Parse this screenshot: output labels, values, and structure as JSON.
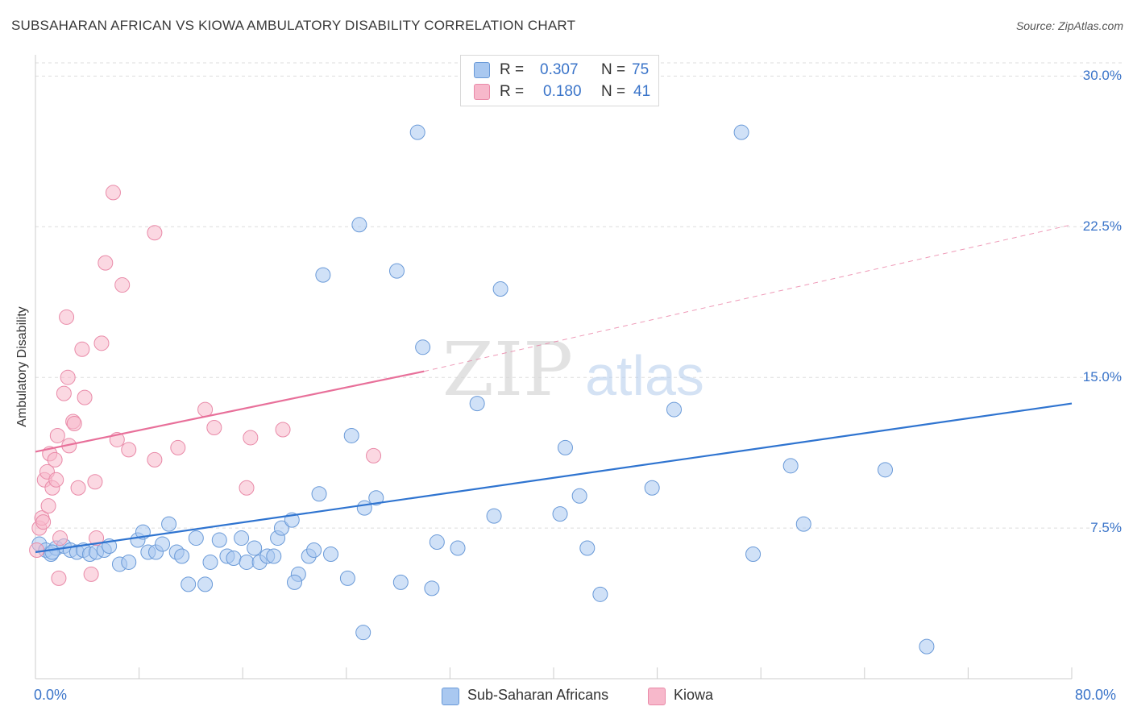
{
  "title": "SUBSAHARAN AFRICAN VS KIOWA AMBULATORY DISABILITY CORRELATION CHART",
  "source": "Source: ZipAtlas.com",
  "watermark": {
    "zip": "ZIP",
    "atlas": "atlas"
  },
  "legend": {
    "r_label": "R =",
    "n_label": "N =",
    "rows": [
      {
        "r": "0.307",
        "n": "75",
        "color": "#a9c8f0"
      },
      {
        "r": "0.180",
        "n": "41",
        "color": "#f7b8cb"
      }
    ]
  },
  "bottom_legend": {
    "items": [
      {
        "label": "Sub-Saharan Africans",
        "color": "#a9c8f0"
      },
      {
        "label": "Kiowa",
        "color": "#f7b8cb"
      }
    ]
  },
  "colors": {
    "blue_fill": "#a9c8f0",
    "blue_stroke": "#6a9ad8",
    "blue_line": "#2f74d0",
    "pink_fill": "#f7b8cb",
    "pink_stroke": "#e98aa8",
    "pink_line": "#e8709a",
    "tick_text": "#3a74c9",
    "grid": "#dddddd"
  },
  "chart_data": {
    "type": "scatter",
    "title": "SUBSAHARAN AFRICAN VS KIOWA AMBULATORY DISABILITY CORRELATION CHART",
    "xlabel": "",
    "ylabel": "Ambulatory Disability",
    "xlim": [
      0,
      80
    ],
    "ylim": [
      0,
      31.5
    ],
    "x_tick_labels": [
      "0.0%",
      "80.0%"
    ],
    "y_ticks": [
      7.5,
      15.0,
      22.5,
      30.0
    ],
    "y_tick_labels": [
      "7.5%",
      "15.0%",
      "22.5%",
      "30.0%"
    ],
    "grid": true,
    "legend_position": "top-center",
    "series": [
      {
        "name": "Sub-Saharan Africans",
        "r": 0.307,
        "n": 75,
        "trend": {
          "x": [
            0,
            80
          ],
          "y": [
            6.3,
            13.7
          ],
          "style": "solid"
        },
        "points": [
          [
            0.3,
            6.7
          ],
          [
            0.8,
            6.4
          ],
          [
            1.2,
            6.2
          ],
          [
            1.6,
            6.5
          ],
          [
            2.2,
            6.6
          ],
          [
            2.7,
            6.4
          ],
          [
            3.2,
            6.3
          ],
          [
            3.7,
            6.4
          ],
          [
            4.2,
            6.2
          ],
          [
            4.7,
            6.3
          ],
          [
            5.3,
            6.4
          ],
          [
            5.7,
            6.6
          ],
          [
            6.5,
            5.7
          ],
          [
            7.2,
            5.8
          ],
          [
            7.9,
            6.9
          ],
          [
            8.3,
            7.3
          ],
          [
            8.7,
            6.3
          ],
          [
            9.3,
            6.3
          ],
          [
            9.8,
            6.7
          ],
          [
            10.3,
            7.7
          ],
          [
            10.9,
            6.3
          ],
          [
            11.3,
            6.1
          ],
          [
            11.8,
            4.7
          ],
          [
            12.4,
            7.0
          ],
          [
            13.1,
            4.7
          ],
          [
            13.5,
            5.8
          ],
          [
            14.2,
            6.9
          ],
          [
            14.8,
            6.1
          ],
          [
            15.3,
            6.0
          ],
          [
            15.9,
            7.0
          ],
          [
            16.3,
            5.8
          ],
          [
            16.9,
            6.5
          ],
          [
            17.3,
            5.8
          ],
          [
            17.9,
            6.1
          ],
          [
            18.4,
            6.1
          ],
          [
            18.7,
            7.0
          ],
          [
            19.0,
            7.5
          ],
          [
            19.8,
            7.9
          ],
          [
            20.3,
            5.2
          ],
          [
            20.0,
            4.8
          ],
          [
            21.1,
            6.1
          ],
          [
            21.5,
            6.4
          ],
          [
            21.9,
            9.2
          ],
          [
            22.8,
            6.2
          ],
          [
            22.2,
            20.1
          ],
          [
            24.1,
            5.0
          ],
          [
            24.4,
            12.1
          ],
          [
            25.0,
            22.6
          ],
          [
            25.4,
            8.5
          ],
          [
            25.3,
            2.3
          ],
          [
            26.3,
            9.0
          ],
          [
            27.9,
            20.3
          ],
          [
            28.2,
            4.8
          ],
          [
            29.5,
            27.2
          ],
          [
            29.9,
            16.5
          ],
          [
            30.6,
            4.5
          ],
          [
            31.0,
            6.8
          ],
          [
            32.6,
            6.5
          ],
          [
            34.1,
            13.7
          ],
          [
            35.4,
            8.1
          ],
          [
            35.9,
            19.4
          ],
          [
            40.5,
            8.2
          ],
          [
            40.9,
            11.5
          ],
          [
            42.0,
            9.1
          ],
          [
            42.6,
            6.5
          ],
          [
            43.6,
            4.2
          ],
          [
            47.6,
            9.5
          ],
          [
            49.3,
            13.4
          ],
          [
            54.5,
            27.2
          ],
          [
            55.4,
            6.2
          ],
          [
            58.3,
            10.6
          ],
          [
            59.3,
            7.7
          ],
          [
            65.6,
            10.4
          ],
          [
            68.8,
            1.6
          ],
          [
            1.3,
            6.3
          ]
        ]
      },
      {
        "name": "Kiowa",
        "r": 0.18,
        "n": 41,
        "trend": {
          "x": [
            0,
            30
          ],
          "y": [
            11.3,
            15.3
          ],
          "style": "solid",
          "extended_to": [
            80,
            22.6
          ],
          "extended_style": "dashed"
        },
        "points": [
          [
            0.1,
            6.4
          ],
          [
            0.3,
            7.5
          ],
          [
            0.5,
            8.0
          ],
          [
            0.6,
            7.8
          ],
          [
            0.7,
            9.9
          ],
          [
            0.9,
            10.3
          ],
          [
            1.0,
            8.6
          ],
          [
            1.1,
            11.2
          ],
          [
            1.3,
            9.5
          ],
          [
            1.5,
            10.9
          ],
          [
            1.6,
            9.9
          ],
          [
            1.7,
            12.1
          ],
          [
            1.8,
            5.0
          ],
          [
            1.9,
            7.0
          ],
          [
            2.2,
            14.2
          ],
          [
            2.4,
            18.0
          ],
          [
            2.5,
            15.0
          ],
          [
            2.6,
            11.6
          ],
          [
            2.9,
            12.8
          ],
          [
            3.0,
            12.7
          ],
          [
            3.3,
            9.5
          ],
          [
            3.6,
            16.4
          ],
          [
            3.8,
            14.0
          ],
          [
            4.3,
            5.2
          ],
          [
            4.6,
            9.8
          ],
          [
            4.7,
            7.0
          ],
          [
            5.1,
            16.7
          ],
          [
            5.4,
            20.7
          ],
          [
            6.0,
            24.2
          ],
          [
            6.3,
            11.9
          ],
          [
            6.7,
            19.6
          ],
          [
            7.2,
            11.4
          ],
          [
            9.2,
            22.2
          ],
          [
            9.2,
            10.9
          ],
          [
            11.0,
            11.5
          ],
          [
            13.1,
            13.4
          ],
          [
            13.8,
            12.5
          ],
          [
            16.3,
            9.5
          ],
          [
            16.6,
            12.0
          ],
          [
            19.1,
            12.4
          ],
          [
            26.1,
            11.1
          ]
        ]
      }
    ]
  }
}
